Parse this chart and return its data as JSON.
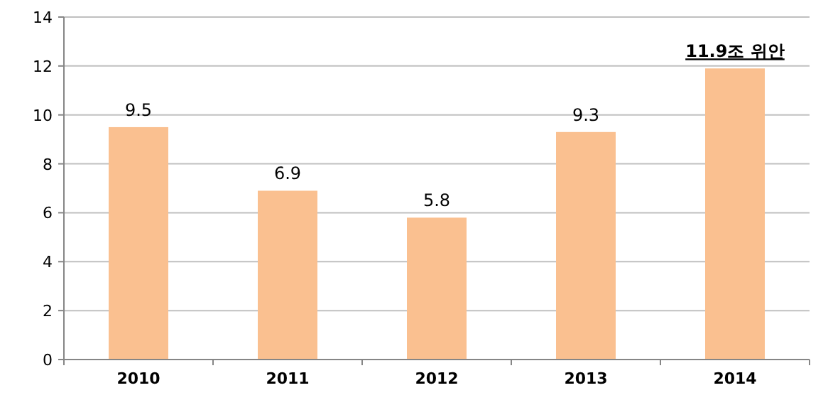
{
  "chart_data": {
    "type": "bar",
    "categories": [
      "2010",
      "2011",
      "2012",
      "2013",
      "2014"
    ],
    "values": [
      9.5,
      6.9,
      5.8,
      9.3,
      11.9
    ],
    "value_labels": [
      "9.5",
      "6.9",
      "5.8",
      "9.3",
      "11.9조 위안"
    ],
    "color": "#fac090",
    "ylim": [
      0,
      14
    ],
    "yticks": [
      0,
      2,
      4,
      6,
      8,
      10,
      12,
      14
    ],
    "grid": "y"
  }
}
